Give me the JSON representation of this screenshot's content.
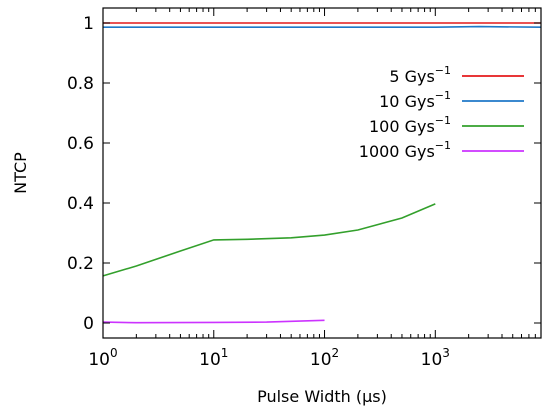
{
  "chart_data": {
    "type": "line",
    "title": "",
    "xlabel": "Pulse Width (μs)",
    "ylabel": "NTCP",
    "x_scale": "log",
    "xlim": [
      1,
      9000
    ],
    "ylim": [
      -0.05,
      1.05
    ],
    "x_ticks": [
      {
        "value": 1,
        "base": "10",
        "exp": "0"
      },
      {
        "value": 10,
        "base": "10",
        "exp": "1"
      },
      {
        "value": 100,
        "base": "10",
        "exp": "2"
      },
      {
        "value": 1000,
        "base": "10",
        "exp": "3"
      }
    ],
    "y_ticks": [
      {
        "value": 0,
        "label": "0"
      },
      {
        "value": 0.2,
        "label": "0.2"
      },
      {
        "value": 0.4,
        "label": "0.4"
      },
      {
        "value": 0.6,
        "label": "0.6"
      },
      {
        "value": 0.8,
        "label": "0.8"
      },
      {
        "value": 1,
        "label": "1"
      }
    ],
    "grid": false,
    "legend_position": "top-right",
    "series": [
      {
        "name": "5 Gys",
        "name_sup": "−1",
        "color": "#e41a1c",
        "points": [
          [
            1,
            1.0
          ],
          [
            10,
            1.0
          ],
          [
            100,
            1.0
          ],
          [
            1000,
            1.0
          ],
          [
            9000,
            1.0
          ]
        ]
      },
      {
        "name": "10 Gys",
        "name_sup": "−1",
        "color": "#1f78c8",
        "points": [
          [
            1,
            0.986
          ],
          [
            10,
            0.986
          ],
          [
            100,
            0.986
          ],
          [
            1000,
            0.986
          ],
          [
            2500,
            0.988
          ],
          [
            9000,
            0.986
          ]
        ]
      },
      {
        "name": "100 Gys",
        "name_sup": "−1",
        "color": "#33a02c",
        "points": [
          [
            1,
            0.157
          ],
          [
            2,
            0.19
          ],
          [
            5,
            0.24
          ],
          [
            10,
            0.277
          ],
          [
            20,
            0.279
          ],
          [
            50,
            0.284
          ],
          [
            100,
            0.293
          ],
          [
            200,
            0.31
          ],
          [
            500,
            0.35
          ],
          [
            1000,
            0.397
          ]
        ]
      },
      {
        "name": "1000 Gys",
        "name_sup": "−1",
        "color": "#cc33ff",
        "points": [
          [
            1,
            0.003
          ],
          [
            2,
            0.001
          ],
          [
            10,
            0.002
          ],
          [
            30,
            0.003
          ],
          [
            100,
            0.009
          ]
        ]
      }
    ]
  }
}
